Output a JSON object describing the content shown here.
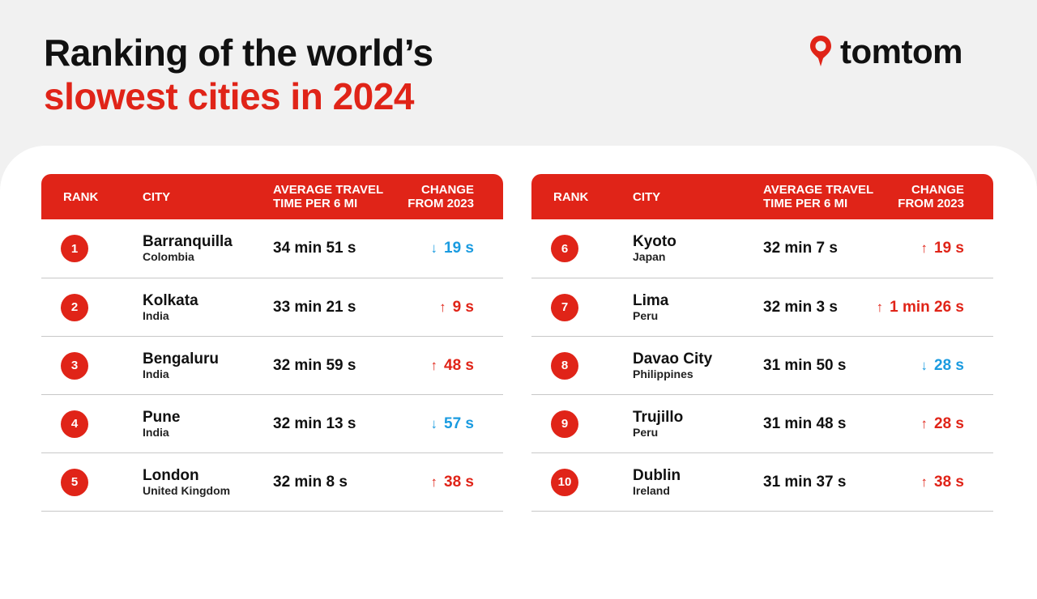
{
  "header": {
    "title_line1": "Ranking of the world’s",
    "title_line2": "slowest cities in 2024"
  },
  "logo": {
    "icon": "map-pin-icon",
    "text": "tomtom",
    "color": "#e02418"
  },
  "colors": {
    "accent": "#e02418",
    "decrease": "#1a9be0",
    "text": "#111111"
  },
  "columns": {
    "rank": "RANK",
    "city": "CITY",
    "time_line1": "AVERAGE TRAVEL",
    "time_line2": "TIME PER 6 MI",
    "change_line1": "CHANGE",
    "change_line2": "FROM 2023"
  },
  "left_rows": [
    {
      "rank": "1",
      "city": "Barranquilla",
      "country": "Colombia",
      "time": "34 min 51 s",
      "change": "19 s",
      "direction": "down"
    },
    {
      "rank": "2",
      "city": "Kolkata",
      "country": "India",
      "time": "33 min 21 s",
      "change": "9 s",
      "direction": "up"
    },
    {
      "rank": "3",
      "city": "Bengaluru",
      "country": "India",
      "time": "32 min 59 s",
      "change": "48 s",
      "direction": "up"
    },
    {
      "rank": "4",
      "city": "Pune",
      "country": "India",
      "time": "32 min 13 s",
      "change": "57 s",
      "direction": "down"
    },
    {
      "rank": "5",
      "city": "London",
      "country": "United Kingdom",
      "time": "32 min 8 s",
      "change": "38 s",
      "direction": "up"
    }
  ],
  "right_rows": [
    {
      "rank": "6",
      "city": "Kyoto",
      "country": "Japan",
      "time": "32 min 7 s",
      "change": "19 s",
      "direction": "up"
    },
    {
      "rank": "7",
      "city": "Lima",
      "country": "Peru",
      "time": "32 min 3 s",
      "change": "1 min 26 s",
      "direction": "up"
    },
    {
      "rank": "8",
      "city": "Davao City",
      "country": "Philippines",
      "time": "31 min 50 s",
      "change": "28 s",
      "direction": "down"
    },
    {
      "rank": "9",
      "city": "Trujillo",
      "country": "Peru",
      "time": "31 min 48 s",
      "change": "28 s",
      "direction": "up"
    },
    {
      "rank": "10",
      "city": "Dublin",
      "country": "Ireland",
      "time": "31 min 37 s",
      "change": "38 s",
      "direction": "up"
    }
  ]
}
